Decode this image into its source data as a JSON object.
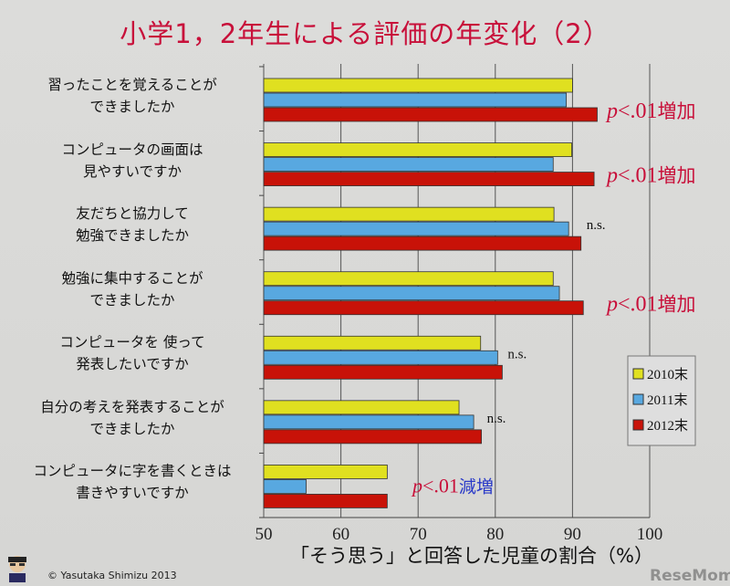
{
  "title": "小学1，2年生による評価の年変化（2）",
  "copyright": "© Yasutaka Shimizu 2013",
  "watermark": "ReseMom",
  "chart_data": {
    "type": "bar",
    "orientation": "horizontal",
    "title": "小学1，2年生による評価の年変化（2）",
    "xlabel": "「そう思う」と回答した児童の割合（%）",
    "xlim": [
      50,
      100
    ],
    "xticks": [
      "50",
      "60",
      "70",
      "80",
      "90",
      "100"
    ],
    "grid": true,
    "legend_position": "right",
    "categories": [
      [
        "習ったことを覚えることが",
        "できましたか"
      ],
      [
        "コンピュータの画面は",
        "見やすいですか"
      ],
      [
        "友だちと協力して",
        "勉強できましたか"
      ],
      [
        "勉強に集中することが",
        "できましたか"
      ],
      [
        "コンピュータを 使って",
        "発表したいですか"
      ],
      [
        "自分の考えを発表することが",
        "できましたか"
      ],
      [
        "コンピュータに字を書くときは",
        "書きやすいですか"
      ]
    ],
    "series": [
      {
        "name": "2010末",
        "color": "#e0e020",
        "values": [
          90.0,
          89.9,
          87.6,
          87.5,
          78.1,
          75.3,
          66.0
        ]
      },
      {
        "name": "2011末",
        "color": "#58a8e0",
        "values": [
          89.2,
          87.5,
          89.5,
          88.3,
          80.3,
          77.2,
          55.5
        ]
      },
      {
        "name": "2012末",
        "color": "#c81208",
        "values": [
          93.2,
          92.8,
          91.1,
          91.4,
          80.9,
          78.2,
          66.0
        ]
      }
    ],
    "annotations": [
      {
        "category": 0,
        "p": "p",
        "text": "<.01",
        "suffix": "増加",
        "suffix_color": "#c8103a"
      },
      {
        "category": 1,
        "p": "p",
        "text": "<.01",
        "suffix": "増加",
        "suffix_color": "#c8103a"
      },
      {
        "category": 2,
        "text": "n.s."
      },
      {
        "category": 3,
        "p": "p",
        "text": "<.01",
        "suffix": "増加",
        "suffix_color": "#c8103a"
      },
      {
        "category": 4,
        "text": "n.s."
      },
      {
        "category": 5,
        "text": "n.s."
      },
      {
        "category": 6,
        "p": "p",
        "text": "<.01",
        "suffix": "減増",
        "suffix_color": "#2a3ac8"
      }
    ]
  }
}
